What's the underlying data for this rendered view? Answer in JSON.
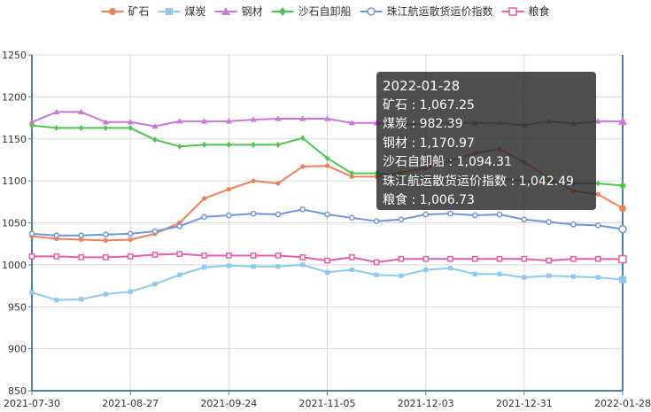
{
  "chart_data": {
    "type": "line",
    "title": "",
    "xlabel": "",
    "ylabel": "",
    "ylim": [
      850,
      1250
    ],
    "yticks": [
      850,
      900,
      950,
      1000,
      1050,
      1100,
      1150,
      1200,
      1250
    ],
    "x_tick_labels": [
      "2021-07-30",
      "2021-08-27",
      "2021-09-24",
      "2021-11-05",
      "2021-12-03",
      "2021-12-31",
      "2022-01-28"
    ],
    "x_tick_indices": [
      0,
      4,
      8,
      12,
      16,
      20,
      24
    ],
    "grid": true,
    "legend": "top",
    "x": [
      "2021-07-30",
      "2021-08-06",
      "2021-08-13",
      "2021-08-20",
      "2021-08-27",
      "2021-09-03",
      "2021-09-10",
      "2021-09-17",
      "2021-09-24",
      "2021-09-30",
      "2021-10-15",
      "2021-10-22",
      "2021-11-05",
      "2021-11-12",
      "2021-11-19",
      "2021-11-26",
      "2021-12-03",
      "2021-12-10",
      "2021-12-17",
      "2021-12-24",
      "2021-12-31",
      "2022-01-07",
      "2022-01-14",
      "2022-01-21",
      "2022-01-28"
    ],
    "series": [
      {
        "name": "矿石",
        "color": "#f0805a",
        "marker": "circle",
        "values": [
          1034,
          1031,
          1030,
          1029,
          1030,
          1037,
          1050,
          1079,
          1090,
          1100,
          1097,
          1117,
          1118,
          1105,
          1105,
          1110,
          1115,
          1124,
          1133,
          1138,
          1122,
          1104,
          1088,
          1084,
          1067.25
        ]
      },
      {
        "name": "煤炭",
        "color": "#8ec9ef",
        "marker": "square",
        "values": [
          967,
          958,
          959,
          965,
          968,
          977,
          988,
          997,
          999,
          998,
          998,
          1000,
          991,
          994,
          988,
          987,
          994,
          996,
          989,
          989,
          985,
          987,
          986,
          985,
          982.39
        ]
      },
      {
        "name": "钢材",
        "color": "#cc77d8",
        "marker": "triangle",
        "values": [
          1170,
          1182,
          1182,
          1170,
          1170,
          1165,
          1171,
          1171,
          1171,
          1173,
          1174,
          1174,
          1174,
          1169,
          1169,
          1167,
          1168,
          1169,
          1169,
          1169,
          1166,
          1171,
          1168,
          1171,
          1170.97
        ]
      },
      {
        "name": "沙石自卸船",
        "color": "#4fc44f",
        "marker": "diamond",
        "values": [
          1166,
          1163,
          1163,
          1163,
          1163,
          1149,
          1141,
          1143,
          1143,
          1143,
          1143,
          1151,
          1127,
          1109,
          1109,
          1106,
          1104,
          1103,
          1103,
          1103,
          1100,
          1098,
          1097,
          1097,
          1094.31
        ]
      },
      {
        "name": "珠江航运散货运价指数",
        "color": "#6f95dc",
        "marker": "emptycircle",
        "values": [
          1037,
          1035,
          1035,
          1036,
          1037,
          1040,
          1046,
          1057,
          1059,
          1061,
          1060,
          1066,
          1060,
          1056,
          1052,
          1054,
          1060,
          1061,
          1059,
          1060,
          1054,
          1051,
          1048,
          1047,
          1042.49
        ]
      },
      {
        "name": "粮食",
        "color": "#e75ea6",
        "marker": "emptysquare",
        "values": [
          1010,
          1010,
          1009,
          1009,
          1010,
          1012,
          1013,
          1011,
          1011,
          1011,
          1011,
          1009,
          1005,
          1009,
          1003,
          1007,
          1007,
          1007,
          1007,
          1007,
          1007,
          1005,
          1007,
          1007,
          1006.73
        ]
      }
    ]
  },
  "tooltip": {
    "date": "2022-01-28",
    "rows": [
      "矿石 : 1,067.25",
      "煤炭 : 982.39",
      "钢材 : 1,170.97",
      "沙石自卸船 : 1,094.31",
      "珠江航运散货运价指数 : 1,042.49",
      "粮食 : 1,006.73"
    ]
  }
}
